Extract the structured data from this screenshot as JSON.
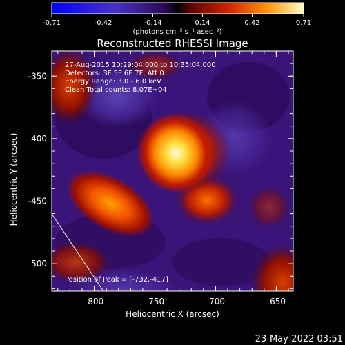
{
  "colors": {
    "background": "#000000",
    "foreground": "#ffffff",
    "colormap": [
      "#0000ff",
      "#3030d8",
      "#5a1fa0",
      "#3a1070",
      "#1a0a30",
      "#000000",
      "#4a0500",
      "#a00c00",
      "#e03000",
      "#ff8000",
      "#ffd000",
      "#ffffa0"
    ]
  },
  "colorbar": {
    "tick_labels": [
      "-0.71",
      "-0.42",
      "-0.14",
      "0.14",
      "0.42",
      "0.71"
    ],
    "unit_label": "(photons cm⁻² s⁻¹ asec⁻²)",
    "range": [
      -0.71,
      0.71
    ]
  },
  "chart_data": {
    "type": "heatmap",
    "title": "Reconstructed RHESSI Image",
    "xlabel": "Heliocentric X (arcsec)",
    "ylabel": "Heliocentric Y (arcsec)",
    "xlim": [
      -835,
      -636
    ],
    "ylim": [
      -522,
      -330
    ],
    "x_ticks": [
      "-800",
      "-750",
      "-700",
      "-650"
    ],
    "x_tick_values": [
      -800,
      -750,
      -700,
      -650
    ],
    "y_ticks": [
      "-350",
      "-400",
      "-450",
      "-500"
    ],
    "y_tick_values": [
      -350,
      -400,
      -450,
      -500
    ],
    "annotations": [
      "27-Aug-2015 10:29:04.000 to 10:35:04.000",
      "Detectors: 3F 5F 6F 7F, Att 0",
      "Energy Range: 3.0 - 6.0 keV",
      "Clean    Total counts: 8.07E+04"
    ],
    "peak_label": "Position of Peak = [-732,-417]",
    "peak": [
      -732,
      -417
    ],
    "sources": [
      {
        "x": -732,
        "y": -402,
        "value": 0.71
      },
      {
        "x": -763,
        "y": -458,
        "value": 0.42
      },
      {
        "x": -713,
        "y": -450,
        "value": 0.3
      },
      {
        "x": -810,
        "y": -402,
        "value": 0.2
      },
      {
        "x": -648,
        "y": -500,
        "value": 0.25
      }
    ]
  },
  "footer": {
    "timestamp": "23-May-2022 03:51"
  }
}
